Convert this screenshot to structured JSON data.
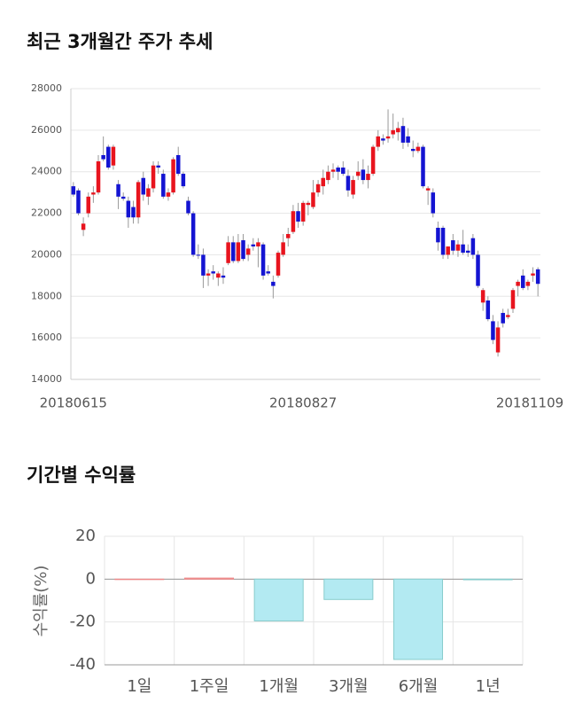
{
  "chart_data": [
    {
      "type": "candlestick",
      "title": "최근 3개월간 주가 추세",
      "categories": [
        "20180615",
        null,
        null,
        null,
        null,
        null,
        null,
        null,
        null,
        null,
        null,
        null,
        null,
        null,
        null,
        null,
        null,
        null,
        null,
        null,
        null,
        null,
        null,
        null,
        null,
        null,
        null,
        null,
        null,
        null,
        null,
        null,
        null,
        null,
        null,
        null,
        null,
        null,
        null,
        null,
        null,
        null,
        null,
        null,
        null,
        null,
        "20180827",
        null,
        null,
        null,
        null,
        null,
        null,
        null,
        null,
        null,
        null,
        null,
        null,
        null,
        null,
        null,
        null,
        null,
        null,
        null,
        null,
        null,
        null,
        null,
        null,
        null,
        null,
        null,
        null,
        null,
        null,
        null,
        null,
        null,
        null,
        null,
        null,
        null,
        null,
        null,
        null,
        null,
        null,
        null,
        null,
        null,
        null,
        "20181109"
      ],
      "open": [
        23300,
        23100,
        21200,
        22000,
        22900,
        23000,
        24800,
        25200,
        24300,
        23400,
        22800,
        22600,
        22300,
        21800,
        23700,
        22800,
        23200,
        24300,
        23900,
        22800,
        23000,
        24800,
        23900,
        22600,
        22000,
        20000,
        20000,
        19000,
        19200,
        18900,
        19000,
        19600,
        20600,
        19700,
        20700,
        20000,
        20500,
        20400,
        20500,
        19200,
        18700,
        19000,
        20000,
        20800,
        21100,
        22100,
        21600,
        22400,
        22300,
        23000,
        23300,
        23600,
        24000,
        24200,
        24200,
        23800,
        22900,
        23800,
        24100,
        23600,
        23900,
        25200,
        25600,
        25600,
        25800,
        25900,
        26200,
        25700,
        25100,
        25000,
        25200,
        23100,
        23000,
        21300,
        21300,
        20000,
        20700,
        20200,
        20500,
        20200,
        20800,
        20000,
        17700,
        17800,
        16800,
        15300,
        17200,
        17000,
        17400,
        18500,
        19000,
        18500,
        19000,
        19300
      ],
      "high": [
        23500,
        23200,
        21800,
        23000,
        23300,
        24800,
        25700,
        25300,
        25300,
        23600,
        23000,
        22800,
        22600,
        23600,
        24000,
        23400,
        24500,
        24500,
        24100,
        23200,
        24700,
        25200,
        24000,
        22800,
        22100,
        20500,
        20300,
        19300,
        19500,
        19200,
        19400,
        20900,
        20900,
        21000,
        21000,
        20500,
        20800,
        20800,
        20600,
        19500,
        19000,
        20200,
        21000,
        21300,
        22400,
        22500,
        22600,
        22600,
        23600,
        23600,
        24100,
        24300,
        24400,
        24300,
        24500,
        24100,
        23800,
        24500,
        24600,
        24300,
        25300,
        26000,
        25800,
        27000,
        26800,
        26400,
        26600,
        26100,
        25500,
        25400,
        25300,
        23300,
        23200,
        21600,
        21400,
        20400,
        21000,
        20700,
        21200,
        20500,
        21000,
        20200,
        18400,
        18000,
        17100,
        16800,
        17400,
        17400,
        18400,
        18800,
        19300,
        18800,
        19400,
        19400
      ],
      "low": [
        22800,
        21900,
        20900,
        21800,
        22500,
        22900,
        24500,
        24100,
        24100,
        22200,
        22600,
        21300,
        21500,
        21500,
        22600,
        22400,
        23000,
        23900,
        22700,
        22600,
        22900,
        23800,
        23200,
        21900,
        19900,
        19800,
        18400,
        18500,
        18800,
        18500,
        18600,
        19500,
        19600,
        19600,
        19700,
        19700,
        20200,
        19400,
        18800,
        19000,
        17900,
        18900,
        19900,
        20400,
        21000,
        21300,
        21400,
        21900,
        22200,
        22800,
        22900,
        23400,
        23700,
        23600,
        23800,
        22800,
        22700,
        23600,
        23400,
        23200,
        23800,
        25000,
        25300,
        25400,
        25600,
        25500,
        25100,
        25200,
        24700,
        24900,
        23200,
        22400,
        21800,
        20200,
        19800,
        19800,
        20000,
        19900,
        20000,
        19900,
        19800,
        18400,
        17300,
        16800,
        15700,
        15100,
        16500,
        16900,
        17200,
        18000,
        18300,
        18300,
        18700,
        18000
      ],
      "close": [
        22900,
        22000,
        21500,
        22800,
        23000,
        24500,
        24600,
        24200,
        25200,
        22800,
        22700,
        21800,
        21800,
        23500,
        22900,
        23200,
        24300,
        24200,
        22800,
        23000,
        24600,
        23900,
        23300,
        22000,
        20000,
        20000,
        19000,
        19100,
        19100,
        19100,
        18900,
        20600,
        19700,
        20600,
        19800,
        20300,
        20400,
        20600,
        19000,
        19100,
        18500,
        20100,
        20600,
        21000,
        22100,
        21600,
        22500,
        22500,
        23000,
        23400,
        23700,
        24000,
        24100,
        24000,
        23900,
        23100,
        23600,
        24000,
        23600,
        23900,
        25200,
        25700,
        25500,
        25700,
        26000,
        26100,
        25400,
        25400,
        25000,
        25200,
        23300,
        23200,
        22000,
        20600,
        20000,
        20400,
        20200,
        20500,
        20100,
        20100,
        20000,
        18500,
        18300,
        16900,
        15900,
        16500,
        16700,
        17100,
        18300,
        18700,
        18400,
        18700,
        19100,
        18600
      ],
      "up_color": "#e8141e",
      "down_color": "#1414d2",
      "ylim": [
        14000,
        28000
      ],
      "yticks": [
        14000,
        16000,
        18000,
        20000,
        22000,
        24000,
        26000,
        28000
      ],
      "grid": true
    },
    {
      "type": "bar",
      "title": "기간별 수익률",
      "y_label": "수익률(%)",
      "categories": [
        "1일",
        "1주일",
        "1개월",
        "3개월",
        "6개월",
        "1년"
      ],
      "values": [
        0,
        0.5,
        -19.5,
        -9.5,
        -37.5,
        -0.3
      ],
      "positive_color": "#f4a6a6",
      "negative_color": "#b3eaf2",
      "ylim": [
        -40,
        20
      ],
      "yticks": [
        -40,
        -20,
        0,
        20
      ],
      "grid": true
    }
  ]
}
